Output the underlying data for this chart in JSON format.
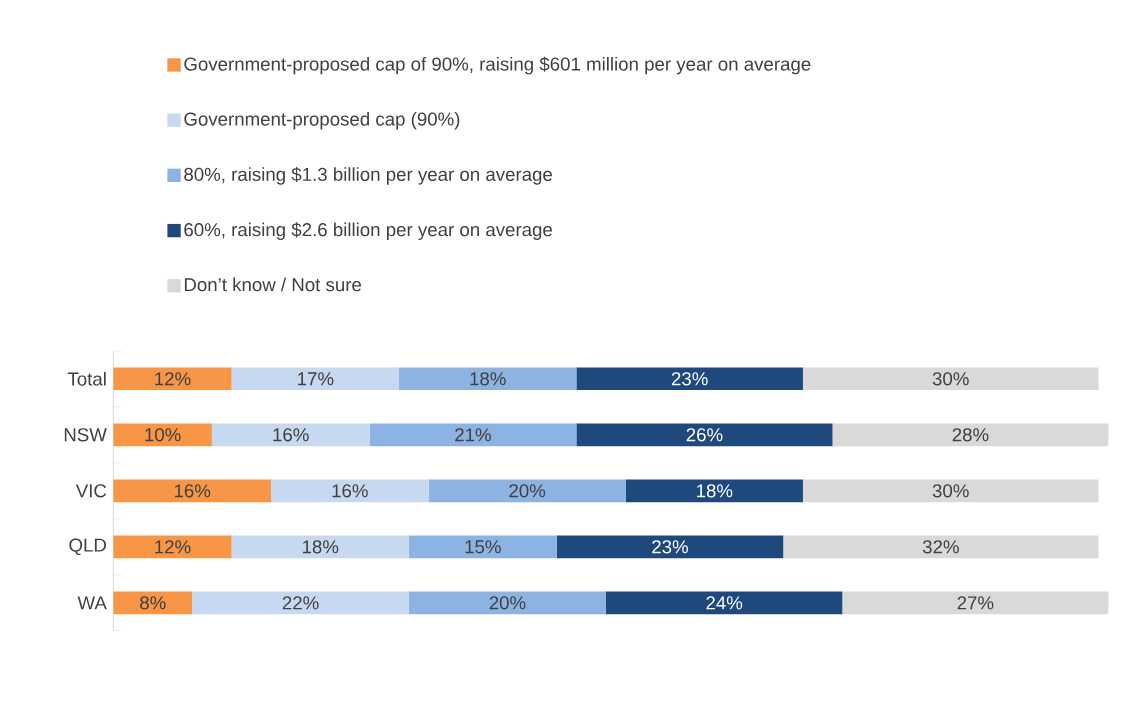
{
  "chart_data": {
    "type": "bar",
    "orientation": "horizontal",
    "stacked": true,
    "legend": "top",
    "categories": [
      "Total",
      "NSW",
      "VIC",
      "QLD",
      "WA"
    ],
    "series": [
      {
        "name": "Government-proposed cap of 90%, raising $601 million per year on average",
        "color": "#f79646",
        "values": [
          12,
          10,
          16,
          12,
          8
        ],
        "value_labels": [
          "12%",
          "10%",
          "16%",
          "12%",
          "8%"
        ]
      },
      {
        "name": "Government-proposed cap (90%)",
        "color": "#c6d9f1",
        "values": [
          17,
          16,
          16,
          18,
          22
        ],
        "value_labels": [
          "17%",
          "16%",
          "16%",
          "18%",
          "22%"
        ]
      },
      {
        "name": "80%, raising $1.3 billion per year on average",
        "color": "#8db3e2",
        "values": [
          18,
          21,
          20,
          15,
          20
        ],
        "value_labels": [
          "18%",
          "21%",
          "20%",
          "15%",
          "20%"
        ]
      },
      {
        "name": "60%, raising $2.6 billion per year on average",
        "color": "#1f497d",
        "values": [
          23,
          26,
          18,
          23,
          24
        ],
        "value_labels": [
          "23%",
          "26%",
          "18%",
          "23%",
          "24%"
        ]
      },
      {
        "name": "Don’t know / Not sure",
        "color": "#d9d9d9",
        "values": [
          30,
          28,
          30,
          32,
          27
        ],
        "value_labels": [
          "30%",
          "28%",
          "30%",
          "32%",
          "27%"
        ]
      }
    ]
  }
}
